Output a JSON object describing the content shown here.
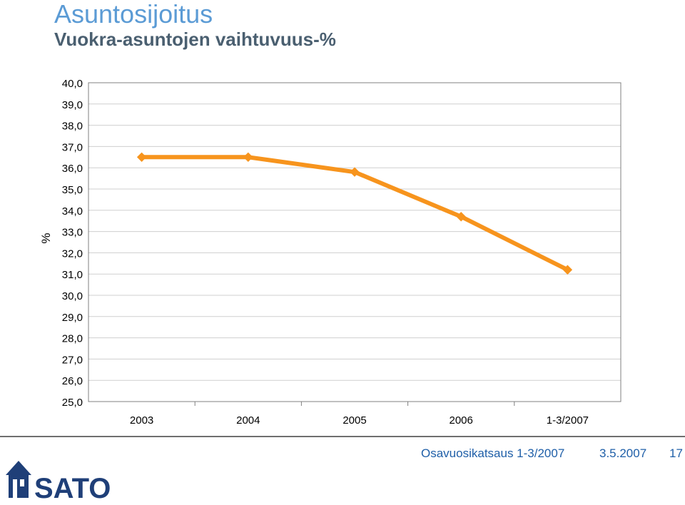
{
  "header": {
    "title": "Asuntosijoitus",
    "subtitle": "Vuokra-asuntojen vaihtuvuus-%"
  },
  "chart_data": {
    "type": "line",
    "title": "Vuokra-asuntojen vaihtuvuus-%",
    "ylabel": "%",
    "xlabel": "",
    "categories": [
      "2003",
      "2004",
      "2005",
      "2006",
      "1-3/2007"
    ],
    "series": [
      {
        "values": [
          36.5,
          36.5,
          35.8,
          33.7,
          31.2
        ],
        "color": "#f7941d"
      }
    ],
    "ylim": [
      25.0,
      40.0
    ],
    "yticks": [
      "25,0",
      "26,0",
      "27,0",
      "28,0",
      "29,0",
      "30,0",
      "31,0",
      "32,0",
      "33,0",
      "34,0",
      "35,0",
      "36,0",
      "37,0",
      "38,0",
      "39,0",
      "40,0"
    ],
    "grid": true,
    "legend": "none"
  },
  "footer": {
    "title": "Osavuosikatsaus 1-3/2007",
    "date": "3.5.2007",
    "page": "17"
  },
  "logo": {
    "text": "SATO",
    "color": "#1f3f78"
  },
  "colors": {
    "title": "#5b9bd5",
    "subtitle": "#4a5f70",
    "footer_text": "#1f5fa8",
    "line": "#f7941d"
  }
}
